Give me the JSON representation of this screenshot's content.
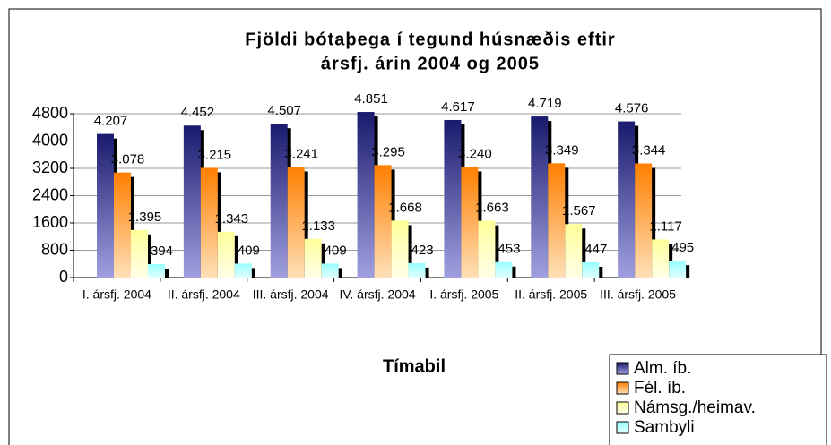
{
  "chart_data": {
    "type": "bar",
    "title": [
      "Fjöldi bótaþega í tegund húsnæðis eftir",
      "ársfj. árin 2004 og 2005"
    ],
    "x_label": "Tímabil",
    "categories": [
      "I. ársfj. 2004",
      "II. ársfj. 2004",
      "III. ársfj. 2004",
      "IV. ársfj. 2004",
      "I. ársfj. 2005",
      "II. ársfj. 2005",
      "III. ársfj. 2005"
    ],
    "series": [
      {
        "name": "Alm. íb.",
        "color": [
          "#1a1a6e",
          "#a0a0e0"
        ],
        "values": [
          4207,
          4452,
          4507,
          4851,
          4617,
          4719,
          4576
        ],
        "value_labels": [
          "4.207",
          "4.452",
          "4.507",
          "4.851",
          "4.617",
          "4.719",
          "4.576"
        ]
      },
      {
        "name": "Fél. íb.",
        "color": [
          "#ff7f00",
          "#ffe0b8"
        ],
        "values": [
          3078,
          3215,
          3241,
          3295,
          3240,
          3349,
          3344
        ],
        "value_labels": [
          "3.078",
          "3.215",
          "3.241",
          "3.295",
          "3.240",
          "3.349",
          "3.344"
        ]
      },
      {
        "name": "Námsg./heimav.",
        "color": [
          "#ffff99",
          "#ffffe8"
        ],
        "values": [
          1395,
          1343,
          1133,
          1668,
          1663,
          1567,
          1117
        ],
        "value_labels": [
          "1.395",
          "1.343",
          "1.133",
          "1.668",
          "1.663",
          "1.567",
          "1.117"
        ]
      },
      {
        "name": "Sambyli",
        "color": [
          "#99ffff",
          "#e0ffff"
        ],
        "values": [
          394,
          409,
          409,
          423,
          453,
          447,
          495
        ],
        "value_labels": [
          "394",
          "409",
          "409",
          "423",
          "453",
          "447",
          "495"
        ]
      }
    ],
    "ylim": [
      0,
      4800
    ],
    "yticks": [
      0,
      800,
      1600,
      2400,
      3200,
      4000,
      4800
    ],
    "grid": true,
    "legend": "bottom-right"
  }
}
